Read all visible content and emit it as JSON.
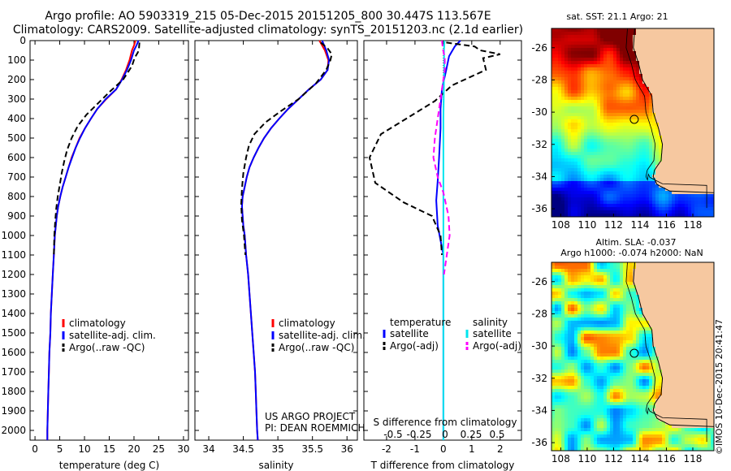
{
  "header": {
    "line1": "Argo profile: AO 5903319_215 05-Dec-2015 20151205_800 30.447S 113.567E",
    "line2": "Climatology: CARS2009. Satellite-adjusted climatology: synTS_20151203.nc (2.1d earlier)"
  },
  "footer_stamp": "©IMOS 10-Dec-2015 20:41:47",
  "chart_data": [
    {
      "type": "line",
      "panel": "temperature",
      "xlabel": "temperature (deg C)",
      "xlim": [
        -1,
        31
      ],
      "xticks": [
        0,
        5,
        10,
        15,
        20,
        25,
        30
      ],
      "ylim": [
        2050,
        0
      ],
      "yticks": [
        0,
        100,
        200,
        300,
        400,
        500,
        600,
        700,
        800,
        900,
        1000,
        1100,
        1200,
        1300,
        1400,
        1500,
        1600,
        1700,
        1800,
        1900,
        2000
      ],
      "legend": [
        "climatology",
        "satellite-adj. clim.",
        "Argo(..raw -QC)"
      ],
      "series": [
        {
          "name": "climatology",
          "color": "#ff0000",
          "style": "solid",
          "points": [
            [
              20.3,
              0
            ],
            [
              20.0,
              25
            ],
            [
              19.6,
              50
            ],
            [
              19.1,
              100
            ],
            [
              18.4,
              150
            ],
            [
              17.5,
              200
            ],
            [
              16.4,
              250
            ],
            [
              14.4,
              300
            ],
            [
              12.6,
              350
            ],
            [
              11.3,
              400
            ],
            [
              10.1,
              450
            ],
            [
              9.0,
              500
            ],
            [
              8.2,
              550
            ],
            [
              7.4,
              600
            ],
            [
              6.8,
              650
            ],
            [
              6.2,
              700
            ],
            [
              5.6,
              750
            ],
            [
              5.1,
              800
            ],
            [
              4.7,
              850
            ],
            [
              4.4,
              900
            ],
            [
              4.2,
              950
            ],
            [
              4.0,
              1000
            ],
            [
              3.8,
              1100
            ],
            [
              3.6,
              1200
            ],
            [
              3.4,
              1300
            ],
            [
              3.2,
              1400
            ],
            [
              3.1,
              1500
            ],
            [
              2.9,
              1600
            ],
            [
              2.8,
              1700
            ],
            [
              2.7,
              1800
            ],
            [
              2.6,
              1900
            ],
            [
              2.5,
              2000
            ],
            [
              2.5,
              2050
            ]
          ]
        },
        {
          "name": "satellite-adj. clim.",
          "color": "#0000ff",
          "style": "solid",
          "points": [
            [
              20.9,
              0
            ],
            [
              20.5,
              25
            ],
            [
              20.0,
              50
            ],
            [
              19.4,
              100
            ],
            [
              18.6,
              150
            ],
            [
              17.6,
              200
            ],
            [
              16.4,
              250
            ],
            [
              14.3,
              300
            ],
            [
              12.6,
              350
            ],
            [
              11.3,
              400
            ],
            [
              10.1,
              450
            ],
            [
              9.1,
              500
            ],
            [
              8.2,
              550
            ],
            [
              7.5,
              600
            ],
            [
              6.8,
              650
            ],
            [
              6.2,
              700
            ],
            [
              5.6,
              750
            ],
            [
              5.1,
              800
            ],
            [
              4.7,
              850
            ],
            [
              4.4,
              900
            ],
            [
              4.2,
              950
            ],
            [
              4.0,
              1000
            ],
            [
              3.8,
              1100
            ],
            [
              3.6,
              1200
            ],
            [
              3.4,
              1300
            ],
            [
              3.2,
              1400
            ],
            [
              3.1,
              1500
            ],
            [
              2.9,
              1600
            ],
            [
              2.8,
              1700
            ],
            [
              2.7,
              1800
            ],
            [
              2.6,
              1900
            ],
            [
              2.5,
              2000
            ],
            [
              2.5,
              2050
            ]
          ]
        },
        {
          "name": "Argo(..raw -QC)",
          "color": "#000000",
          "style": "dashed",
          "points": [
            [
              21.1,
              10
            ],
            [
              21.0,
              40
            ],
            [
              20.8,
              60
            ],
            [
              20.1,
              90
            ],
            [
              19.6,
              130
            ],
            [
              17.8,
              200
            ],
            [
              15.2,
              260
            ],
            [
              12.8,
              320
            ],
            [
              10.4,
              380
            ],
            [
              8.6,
              440
            ],
            [
              7.4,
              500
            ],
            [
              6.5,
              560
            ],
            [
              5.9,
              620
            ],
            [
              5.4,
              680
            ],
            [
              5.0,
              740
            ],
            [
              4.6,
              800
            ],
            [
              4.3,
              860
            ],
            [
              4.1,
              920
            ],
            [
              3.9,
              1000
            ],
            [
              3.8,
              1100
            ]
          ]
        }
      ]
    },
    {
      "type": "line",
      "panel": "salinity",
      "xlabel": "salinity",
      "xlim": [
        33.8,
        36.15
      ],
      "xticks": [
        34,
        34.5,
        35,
        35.5,
        36
      ],
      "ylim": [
        2050,
        0
      ],
      "legend": [
        "climatology",
        "satellite-adj. clim.",
        "Argo(..raw -QC)"
      ],
      "annotation": [
        "US ARGO PROJECT",
        "PI: DEAN ROEMMICH"
      ],
      "series": [
        {
          "name": "climatology",
          "color": "#ff0000",
          "style": "solid",
          "points": [
            [
              35.6,
              0
            ],
            [
              35.68,
              50
            ],
            [
              35.73,
              100
            ],
            [
              35.72,
              150
            ],
            [
              35.62,
              200
            ],
            [
              35.45,
              250
            ],
            [
              35.3,
              300
            ],
            [
              35.15,
              350
            ],
            [
              35.02,
              400
            ],
            [
              34.9,
              450
            ],
            [
              34.8,
              500
            ],
            [
              34.72,
              550
            ],
            [
              34.65,
              600
            ],
            [
              34.59,
              650
            ],
            [
              34.55,
              700
            ],
            [
              34.52,
              750
            ],
            [
              34.49,
              800
            ],
            [
              34.48,
              850
            ],
            [
              34.49,
              900
            ],
            [
              34.5,
              950
            ],
            [
              34.52,
              1000
            ],
            [
              34.54,
              1100
            ],
            [
              34.57,
              1200
            ],
            [
              34.59,
              1300
            ],
            [
              34.61,
              1400
            ],
            [
              34.63,
              1500
            ],
            [
              34.65,
              1600
            ],
            [
              34.67,
              1700
            ],
            [
              34.68,
              1800
            ],
            [
              34.69,
              1900
            ],
            [
              34.7,
              2000
            ],
            [
              34.71,
              2050
            ]
          ]
        },
        {
          "name": "satellite-adj. clim.",
          "color": "#0000ff",
          "style": "solid",
          "points": [
            [
              35.64,
              0
            ],
            [
              35.7,
              50
            ],
            [
              35.74,
              100
            ],
            [
              35.72,
              150
            ],
            [
              35.62,
              200
            ],
            [
              35.45,
              250
            ],
            [
              35.3,
              300
            ],
            [
              35.15,
              350
            ],
            [
              35.02,
              400
            ],
            [
              34.9,
              450
            ],
            [
              34.8,
              500
            ],
            [
              34.72,
              550
            ],
            [
              34.65,
              600
            ],
            [
              34.59,
              650
            ],
            [
              34.55,
              700
            ],
            [
              34.52,
              750
            ],
            [
              34.49,
              800
            ],
            [
              34.48,
              850
            ],
            [
              34.49,
              900
            ],
            [
              34.5,
              950
            ],
            [
              34.52,
              1000
            ],
            [
              34.54,
              1100
            ],
            [
              34.57,
              1200
            ],
            [
              34.59,
              1300
            ],
            [
              34.61,
              1400
            ],
            [
              34.63,
              1500
            ],
            [
              34.65,
              1600
            ],
            [
              34.67,
              1700
            ],
            [
              34.68,
              1800
            ],
            [
              34.69,
              1900
            ],
            [
              34.7,
              2000
            ],
            [
              34.71,
              2050
            ]
          ]
        },
        {
          "name": "Argo(..raw -QC)",
          "color": "#000000",
          "style": "dashed",
          "points": [
            [
              35.62,
              10
            ],
            [
              35.72,
              40
            ],
            [
              35.78,
              70
            ],
            [
              35.76,
              100
            ],
            [
              35.7,
              150
            ],
            [
              35.55,
              220
            ],
            [
              35.3,
              300
            ],
            [
              35.05,
              360
            ],
            [
              34.82,
              420
            ],
            [
              34.66,
              480
            ],
            [
              34.58,
              540
            ],
            [
              34.54,
              600
            ],
            [
              34.5,
              680
            ],
            [
              34.48,
              760
            ],
            [
              34.47,
              840
            ],
            [
              34.48,
              920
            ],
            [
              34.51,
              1000
            ],
            [
              34.53,
              1100
            ]
          ]
        }
      ]
    },
    {
      "type": "line",
      "panel": "difference",
      "xlabel": "T difference from climatology",
      "xlabel_top": "S difference from climatology",
      "xlim": [
        -2.8,
        2.75
      ],
      "xticks": [
        -2,
        -1,
        0,
        1,
        2
      ],
      "sticks": [
        [
          -0.5,
          "-0.5"
        ],
        [
          -0.25,
          "-0.25"
        ],
        [
          0,
          "0"
        ],
        [
          0.25,
          "0.25"
        ],
        [
          0.5,
          "0.5"
        ]
      ],
      "ylim": [
        2050,
        0
      ],
      "legend_titles": [
        "temperature",
        "salinity"
      ],
      "legend": [
        "satellite",
        "Argo(-adj)",
        "satellite",
        "Argo(-adj)"
      ],
      "series": [
        {
          "name": "temperature satellite",
          "color": "#0000ff",
          "style": "solid",
          "points": [
            [
              0.6,
              0
            ],
            [
              0.4,
              30
            ],
            [
              0.2,
              80
            ],
            [
              0.1,
              150
            ],
            [
              -0.05,
              250
            ],
            [
              -0.1,
              350
            ],
            [
              -0.1,
              450
            ],
            [
              -0.15,
              600
            ],
            [
              -0.2,
              720
            ],
            [
              -0.25,
              820
            ],
            [
              -0.2,
              950
            ],
            [
              0,
              1100
            ],
            [
              0,
              2050
            ]
          ]
        },
        {
          "name": "temperature Argo(-adj)",
          "color": "#000000",
          "style": "dashed",
          "points": [
            [
              0.1,
              10
            ],
            [
              1.1,
              30
            ],
            [
              1.3,
              50
            ],
            [
              2.0,
              70
            ],
            [
              1.4,
              90
            ],
            [
              1.5,
              150
            ],
            [
              0.3,
              230
            ],
            [
              -0.3,
              310
            ],
            [
              -1.3,
              400
            ],
            [
              -2.2,
              480
            ],
            [
              -2.6,
              600
            ],
            [
              -2.4,
              730
            ],
            [
              -1.4,
              830
            ],
            [
              -0.4,
              900
            ],
            [
              -0.1,
              1000
            ],
            [
              -0.05,
              1100
            ]
          ]
        },
        {
          "name": "salinity satellite",
          "color": "#00e5ee",
          "style": "solid",
          "points": [
            [
              0.04,
              0
            ],
            [
              0.02,
              50
            ],
            [
              0.03,
              120
            ],
            [
              0.02,
              200
            ],
            [
              0,
              400
            ],
            [
              0,
              2050
            ]
          ]
        },
        {
          "name": "salinity Argo(-adj)",
          "color": "#ff00ff",
          "style": "dashed",
          "points": [
            [
              -0.05,
              0
            ],
            [
              -0.02,
              40
            ],
            [
              0.05,
              90
            ],
            [
              0.05,
              150
            ],
            [
              -0.05,
              250
            ],
            [
              -0.2,
              400
            ],
            [
              -0.3,
              500
            ],
            [
              -0.35,
              600
            ],
            [
              -0.2,
              700
            ],
            [
              0,
              780
            ],
            [
              0.18,
              900
            ],
            [
              0.22,
              1000
            ],
            [
              0.12,
              1100
            ],
            [
              0.02,
              1200
            ]
          ]
        }
      ],
      "zero_line": 0
    },
    {
      "type": "heatmap",
      "panel": "map-sst",
      "title": "sat. SST: 21.1  Argo: 21",
      "xticks": [
        108,
        110,
        112,
        114,
        116,
        118
      ],
      "yticks": [
        -26,
        -28,
        -30,
        -32,
        -34,
        -36
      ],
      "xlim": [
        107.3,
        119.6
      ],
      "ylim": [
        -36.5,
        -24.8
      ],
      "argo_position": [
        113.567,
        -30.447
      ]
    },
    {
      "type": "heatmap",
      "panel": "map-sla",
      "title_line1": "Altim. SLA: -0.037",
      "title_line2": "Argo h1000: -0.074 h2000: NaN",
      "xticks": [
        108,
        110,
        112,
        114,
        116,
        118
      ],
      "yticks": [
        -26,
        -28,
        -30,
        -32,
        -34,
        -36
      ],
      "xlim": [
        107.3,
        119.6
      ],
      "ylim": [
        -36.5,
        -24.8
      ],
      "argo_position": [
        113.567,
        -30.447
      ]
    }
  ]
}
